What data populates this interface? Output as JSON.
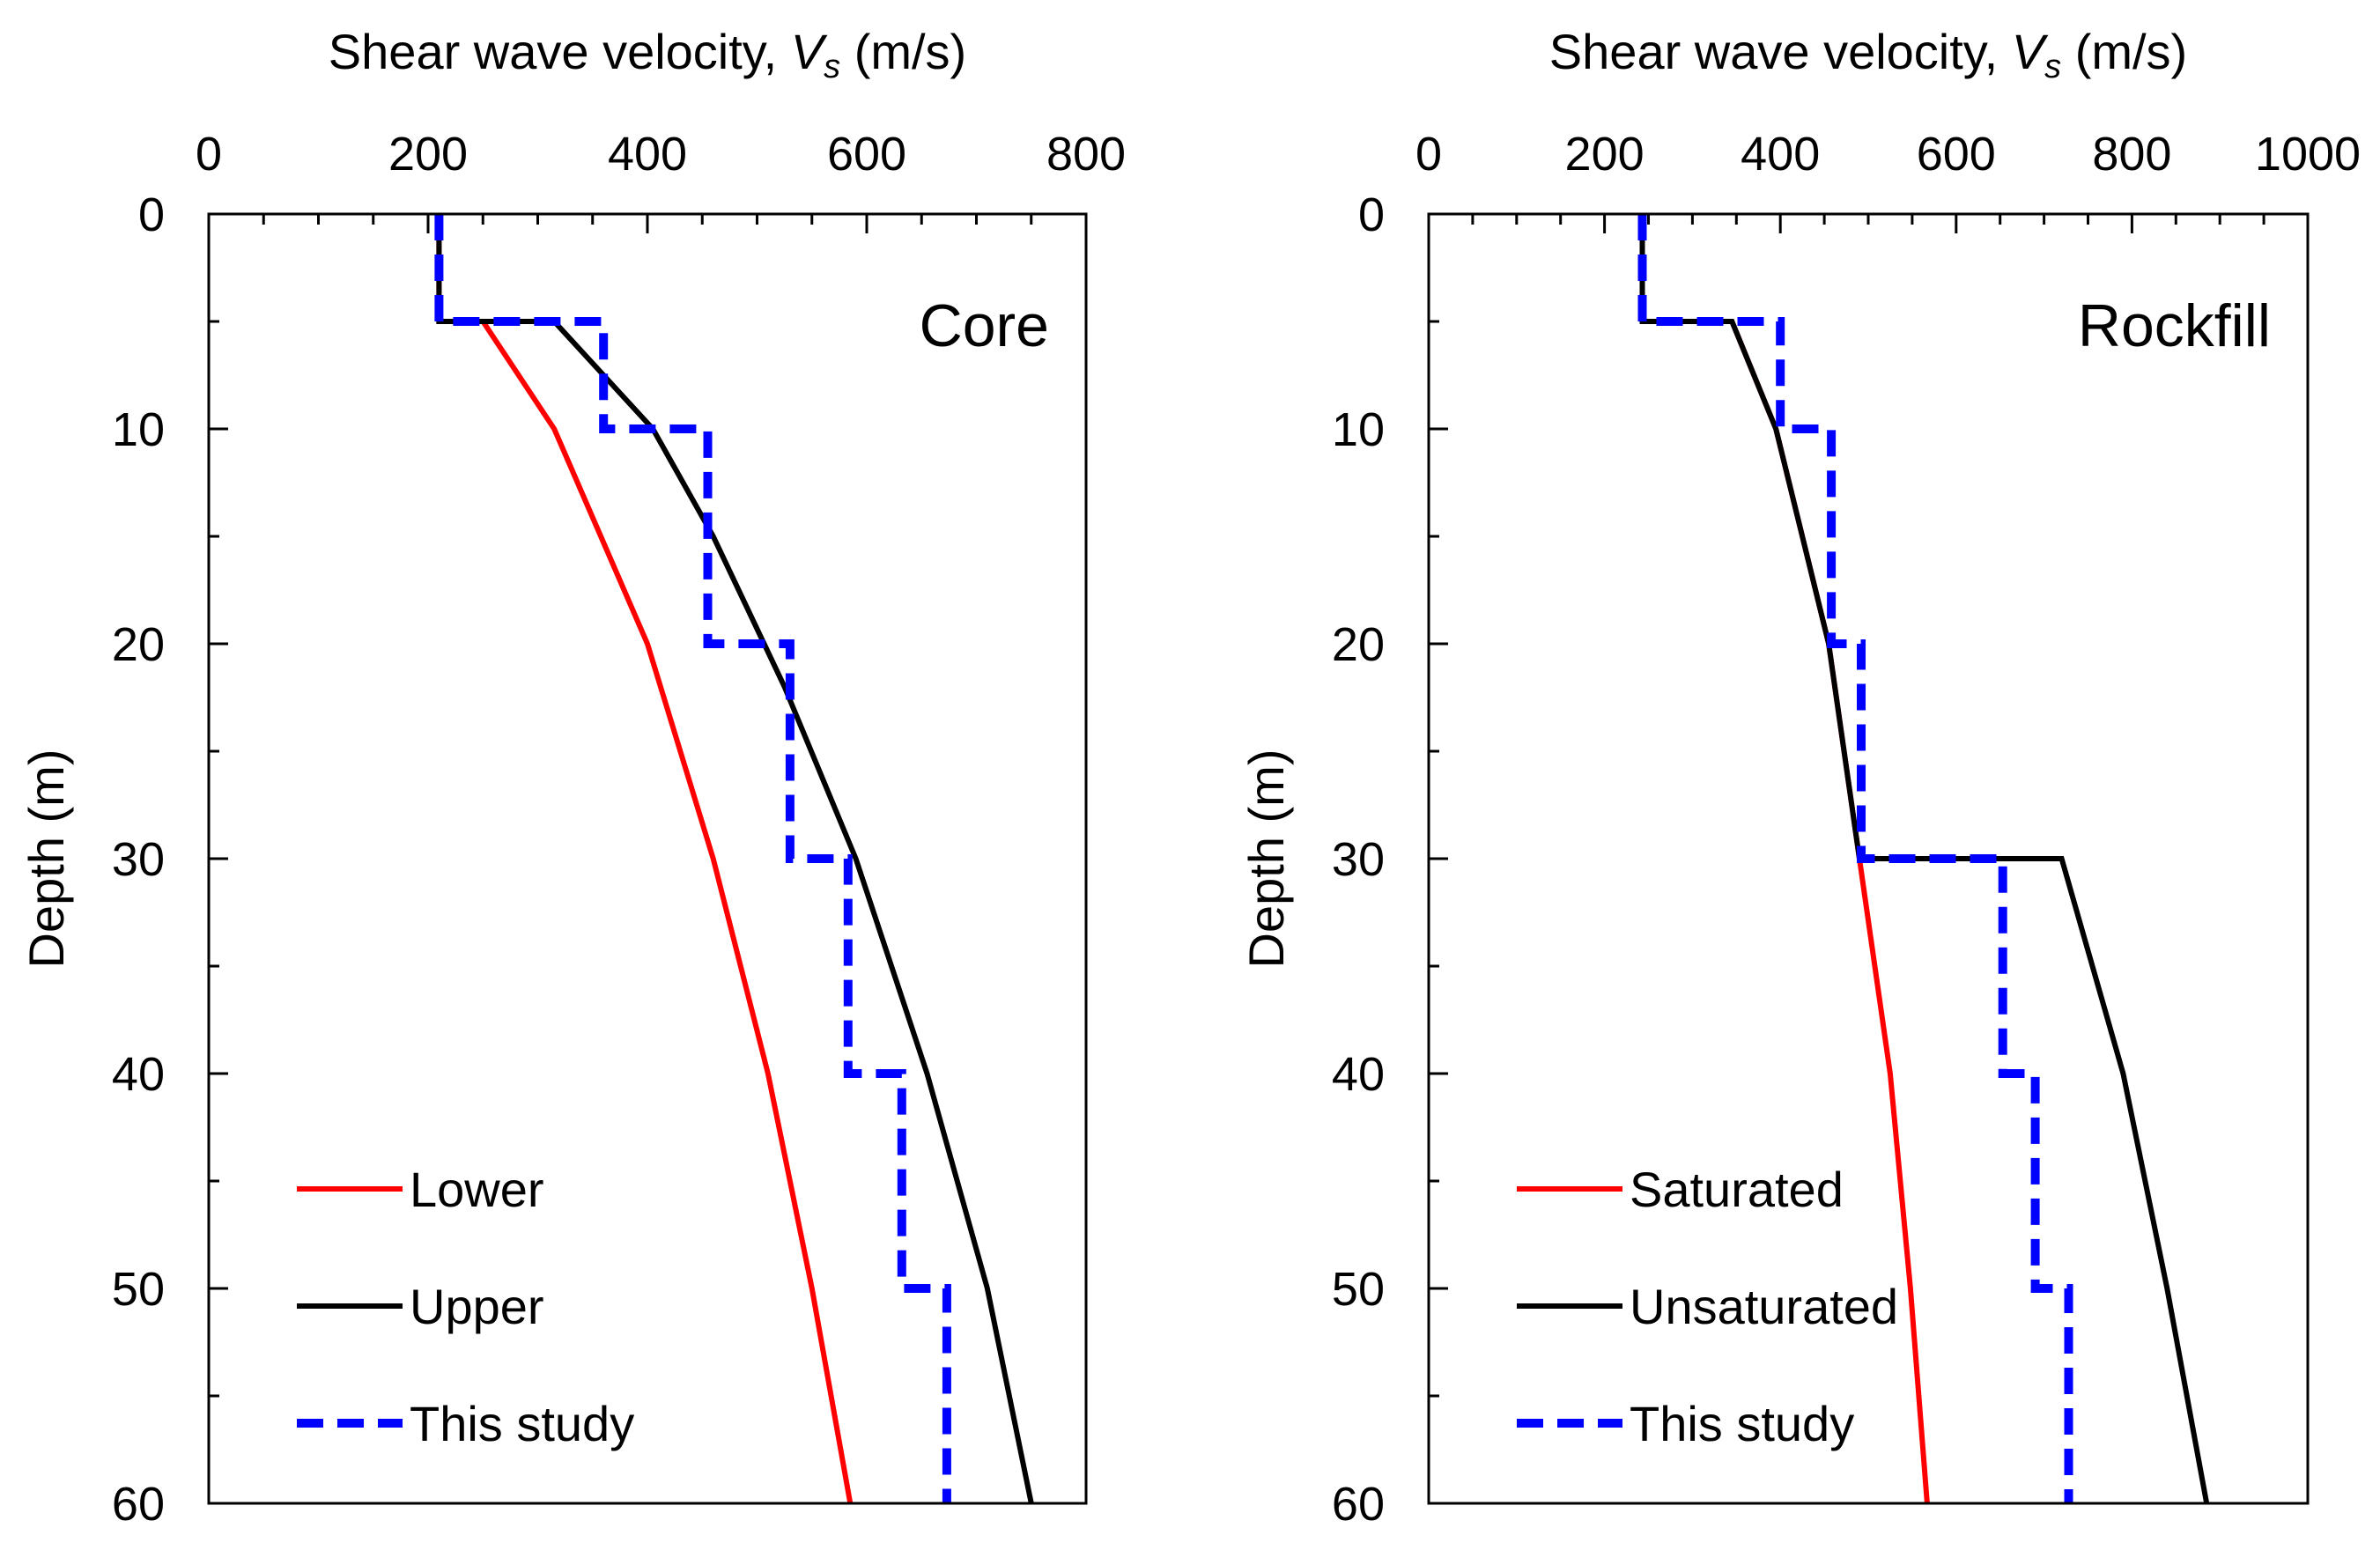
{
  "chart_data": [
    {
      "type": "line",
      "panel_label": "Core",
      "xlabel_prefix": "Shear wave velocity, ",
      "xlabel_var": "V",
      "xlabel_sub": "s",
      "xlabel_suffix": " (m/s)",
      "ylabel": "Depth (m)",
      "xlim": [
        0,
        800
      ],
      "ylim": [
        0,
        60
      ],
      "xticks": [
        0,
        200,
        400,
        600,
        800
      ],
      "yticks": [
        0,
        10,
        20,
        30,
        40,
        50,
        60
      ],
      "x_minor_step": 50,
      "y_minor_step": 5,
      "x_axis_position": "top",
      "y_inverted": true,
      "legend_position": "bottom-left",
      "series": [
        {
          "name": "Lower",
          "color": "#ff0000",
          "style": "solid",
          "points": [
            [
              210,
              0
            ],
            [
              210,
              5
            ],
            [
              250,
              5
            ],
            [
              315,
              10
            ],
            [
              400,
              20
            ],
            [
              460,
              30
            ],
            [
              510,
              40
            ],
            [
              550,
              50
            ],
            [
              585,
              60
            ]
          ]
        },
        {
          "name": "Upper",
          "color": "#000000",
          "style": "solid",
          "points": [
            [
              210,
              0
            ],
            [
              210,
              5
            ],
            [
              315,
              5
            ],
            [
              405,
              10
            ],
            [
              460,
              15
            ],
            [
              525,
              22
            ],
            [
              590,
              30
            ],
            [
              655,
              40
            ],
            [
              710,
              50
            ],
            [
              750,
              60
            ]
          ]
        },
        {
          "name": "This study",
          "color": "#0000ff",
          "style": "dashed",
          "points": [
            [
              210,
              0
            ],
            [
              210,
              5
            ],
            [
              360,
              5
            ],
            [
              360,
              10
            ],
            [
              455,
              10
            ],
            [
              455,
              20
            ],
            [
              530,
              20
            ],
            [
              530,
              30
            ],
            [
              583,
              30
            ],
            [
              583,
              40
            ],
            [
              632,
              40
            ],
            [
              632,
              50
            ],
            [
              673,
              50
            ],
            [
              673,
              60
            ]
          ]
        }
      ]
    },
    {
      "type": "line",
      "panel_label": "Rockfill",
      "xlabel_prefix": "Shear wave velocity, ",
      "xlabel_var": "V",
      "xlabel_sub": "s",
      "xlabel_suffix": " (m/s)",
      "ylabel": "Depth (m)",
      "xlim": [
        0,
        1000
      ],
      "ylim": [
        0,
        60
      ],
      "xticks": [
        0,
        200,
        400,
        600,
        800,
        1000
      ],
      "yticks": [
        0,
        10,
        20,
        30,
        40,
        50,
        60
      ],
      "x_minor_step": 50,
      "y_minor_step": 5,
      "x_axis_position": "top",
      "y_inverted": true,
      "legend_position": "bottom-left",
      "series": [
        {
          "name": "Saturated",
          "color": "#ff0000",
          "style": "solid",
          "points": [
            [
              243,
              0
            ],
            [
              243,
              5
            ],
            [
              345,
              5
            ],
            [
              395,
              10
            ],
            [
              455,
              20
            ],
            [
              490,
              30
            ],
            [
              525,
              40
            ],
            [
              548,
              50
            ],
            [
              567,
              60
            ]
          ]
        },
        {
          "name": "Unsaturated",
          "color": "#000000",
          "style": "solid",
          "points": [
            [
              243,
              0
            ],
            [
              243,
              5
            ],
            [
              345,
              5
            ],
            [
              395,
              10
            ],
            [
              455,
              20
            ],
            [
              490,
              30
            ],
            [
              720,
              30
            ],
            [
              790,
              40
            ],
            [
              840,
              50
            ],
            [
              885,
              60
            ]
          ]
        },
        {
          "name": "This study",
          "color": "#0000ff",
          "style": "dashed",
          "points": [
            [
              243,
              0
            ],
            [
              243,
              5
            ],
            [
              400,
              5
            ],
            [
              400,
              10
            ],
            [
              458,
              10
            ],
            [
              458,
              20
            ],
            [
              492,
              20
            ],
            [
              492,
              30
            ],
            [
              653,
              30
            ],
            [
              653,
              40
            ],
            [
              690,
              40
            ],
            [
              690,
              50
            ],
            [
              728,
              50
            ],
            [
              728,
              60
            ]
          ]
        }
      ]
    }
  ]
}
